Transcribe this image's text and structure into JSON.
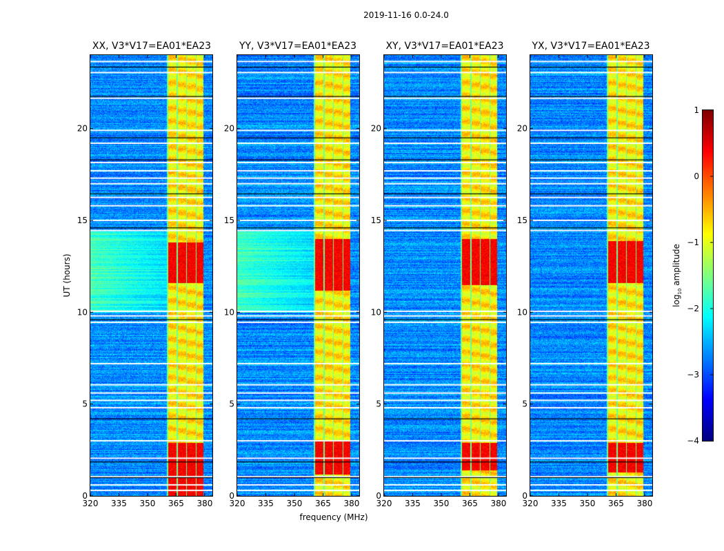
{
  "chart_data": {
    "type": "heatmap",
    "title": "2019-11-16 0.0-24.0",
    "xlabel": "frequency (MHz)",
    "ylabel": "UT (hours)",
    "xlim": [
      320,
      384
    ],
    "ylim": [
      0,
      24
    ],
    "xticks": [
      320,
      335,
      350,
      365,
      380
    ],
    "yticks": [
      0,
      5,
      10,
      15,
      20
    ],
    "colormap": "jet",
    "panels": [
      {
        "title": "XX, V3*V17=EA01*EA23",
        "strong_hours": [
          [
            11.6,
            13.8
          ],
          [
            0,
            2.9
          ]
        ],
        "lowband_green_hours": [
          10.0,
          14.4
        ]
      },
      {
        "title": "YY, V3*V17=EA01*EA23",
        "strong_hours": [
          [
            11.2,
            14.0
          ],
          [
            1.2,
            3.0
          ]
        ],
        "lowband_green_hours": [
          10.0,
          14.4
        ]
      },
      {
        "title": "XY, V3*V17=EA01*EA23",
        "strong_hours": [
          [
            11.5,
            14.0
          ],
          [
            1.4,
            2.9
          ]
        ],
        "lowband_green_hours": []
      },
      {
        "title": "YX, V3*V17=EA01*EA23",
        "strong_hours": [
          [
            11.6,
            13.9
          ],
          [
            1.3,
            2.9
          ]
        ],
        "lowband_green_hours": []
      }
    ],
    "bright_band_mhz": [
      360,
      379
    ],
    "background_log_amplitude": -2.7,
    "band_log_amplitude": -0.8,
    "strong_log_amplitude": 0.4,
    "flagged_hours_white": [
      0.3,
      0.6,
      1.05,
      2.05,
      3.0,
      4.8,
      5.2,
      5.6,
      6.05,
      7.2,
      9.45,
      9.8,
      10.05,
      14.45,
      15.0,
      15.8,
      16.25,
      17.0,
      17.3,
      17.7,
      18.15,
      19.2,
      19.9,
      21.65,
      23.05,
      23.65
    ],
    "flagged_hours_black": [
      1.0,
      1.85,
      4.2,
      9.6,
      14.6,
      16.45,
      18.3,
      19.5,
      21.75,
      23.35
    ],
    "colorbar": {
      "label_prefix": "log",
      "label_sub": "10",
      "label_suffix": " amplitude",
      "range": [
        -4,
        1
      ],
      "ticks": [
        1,
        0,
        -1,
        -2,
        -3,
        -4
      ],
      "tick_labels": [
        "1",
        "0",
        "−1",
        "−2",
        "−3",
        "−4"
      ]
    }
  }
}
